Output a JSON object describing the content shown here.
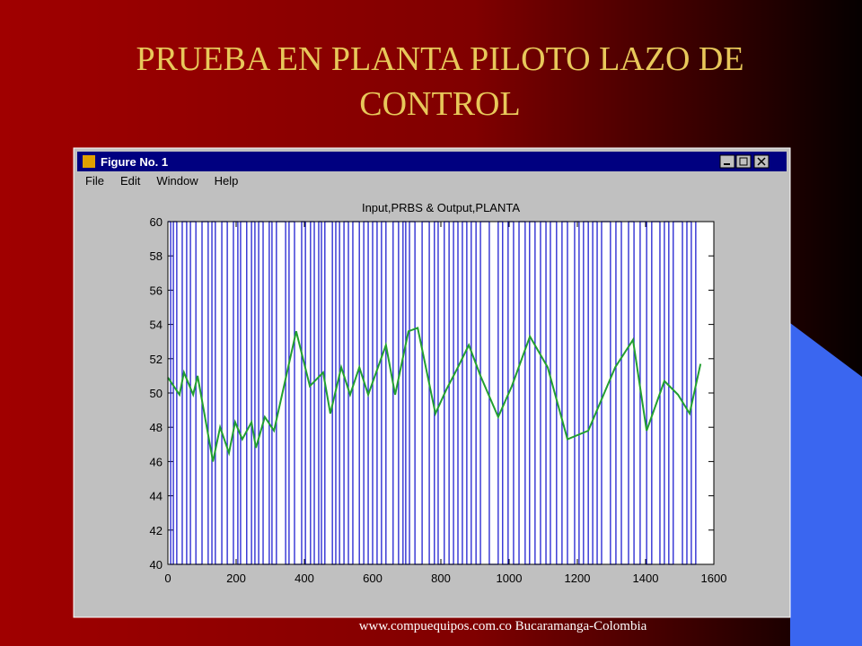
{
  "slide": {
    "title_lines": [
      "PRUEBA EN PLANTA PILOTO LAZO DE",
      "CONTROL"
    ],
    "footer": "www.compuequipos.com.co Bucaramanga-Colombia"
  },
  "window": {
    "title": "Figure No. 1",
    "menu": [
      "File",
      "Edit",
      "Window",
      "Help"
    ]
  },
  "chart_data": {
    "type": "line",
    "title": "Input,PRBS  &  Output,PLANTA",
    "xlim": [
      0,
      1600
    ],
    "xticks": [
      0,
      200,
      400,
      600,
      800,
      1000,
      1200,
      1400,
      1600
    ],
    "ylim": [
      40,
      60
    ],
    "yticks": [
      40,
      42,
      44,
      46,
      48,
      50,
      52,
      54,
      56,
      58,
      60
    ],
    "series": [
      {
        "color": "#2020d0",
        "drawstyle": "steps",
        "x": [
          0,
          8,
          16,
          26,
          42,
          55,
          66,
          82,
          100,
          118,
          129,
          139,
          158,
          174,
          192,
          205,
          213,
          231,
          245,
          255,
          266,
          279,
          297,
          305,
          318,
          345,
          355,
          371,
          392,
          403,
          418,
          429,
          442,
          450,
          460,
          482,
          492,
          503,
          516,
          529,
          542,
          561,
          574,
          587,
          600,
          613,
          626,
          639,
          660,
          676,
          689,
          697,
          708,
          724,
          745,
          766,
          781,
          792,
          810,
          824,
          837,
          850,
          863,
          876,
          889,
          903,
          916,
          942,
          968,
          981,
          997,
          1013,
          1029,
          1047,
          1060,
          1076,
          1092,
          1108,
          1121,
          1139,
          1155,
          1171,
          1192,
          1205,
          1218,
          1232,
          1245,
          1258,
          1271,
          1297,
          1313,
          1329,
          1350,
          1366,
          1384,
          1403,
          1418,
          1442,
          1455,
          1468,
          1481,
          1508,
          1521,
          1534,
          1547
        ],
        "values": [
          60,
          40,
          60,
          40,
          60,
          40,
          60,
          40,
          60,
          40,
          60,
          40,
          60,
          40,
          60,
          40,
          60,
          40,
          60,
          40,
          60,
          40,
          60,
          40,
          60,
          40,
          60,
          40,
          60,
          40,
          60,
          40,
          60,
          40,
          60,
          40,
          60,
          40,
          60,
          40,
          60,
          40,
          60,
          40,
          60,
          40,
          60,
          40,
          60,
          40,
          60,
          40,
          60,
          40,
          60,
          40,
          60,
          40,
          60,
          40,
          60,
          40,
          60,
          40,
          60,
          40,
          60,
          40,
          60,
          40,
          60,
          40,
          60,
          40,
          60,
          40,
          60,
          40,
          60,
          40,
          60,
          40,
          60,
          40,
          60,
          40,
          60,
          40,
          60,
          40,
          60,
          40,
          60,
          40,
          60,
          40,
          60,
          40,
          60,
          40,
          60,
          40,
          60,
          40,
          60
        ]
      },
      {
        "color": "#22a030",
        "x": [
          0,
          34,
          47,
          74,
          87,
          132,
          153,
          179,
          197,
          218,
          245,
          258,
          284,
          311,
          376,
          416,
          455,
          476,
          508,
          534,
          561,
          587,
          639,
          666,
          705,
          732,
          784,
          816,
          850,
          882,
          916,
          968,
          1008,
          1061,
          1113,
          1171,
          1232,
          1311,
          1363,
          1403,
          1455,
          1495,
          1529,
          1561
        ],
        "values": [
          50.9,
          49.9,
          51.2,
          49.9,
          51,
          46,
          48,
          46.5,
          48.3,
          47.3,
          48.3,
          46.8,
          48.6,
          47.8,
          53.6,
          50.4,
          51.2,
          48.8,
          51.5,
          49.9,
          51.5,
          49.9,
          52.8,
          49.9,
          53.6,
          53.8,
          48.8,
          50.2,
          51.5,
          52.8,
          51,
          48.6,
          50.4,
          53.3,
          51.5,
          47.3,
          47.8,
          51.5,
          53.1,
          47.8,
          50.7,
          49.9,
          48.8,
          51.7
        ]
      }
    ]
  }
}
